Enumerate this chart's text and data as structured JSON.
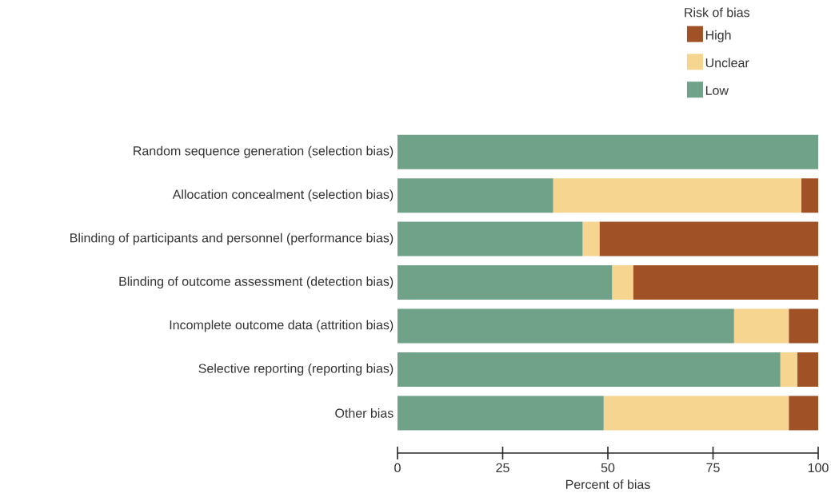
{
  "chart_data": {
    "type": "bar",
    "orientation": "horizontal",
    "stacked": true,
    "categories": [
      "Random sequence generation (selection bias)",
      "Allocation concealment (selection bias)",
      "Blinding of participants and personnel (performance bias)",
      "Blinding of outcome assessment (detection bias)",
      "Incomplete outcome data (attrition bias)",
      "Selective reporting (reporting bias)",
      "Other bias"
    ],
    "series": [
      {
        "name": "Low",
        "color": "#70a28a",
        "values": [
          100,
          37,
          44,
          51,
          80,
          91,
          49
        ]
      },
      {
        "name": "Unclear",
        "color": "#f5d58f",
        "values": [
          0,
          59,
          4,
          5,
          13,
          4,
          44
        ]
      },
      {
        "name": "High",
        "color": "#a05226",
        "values": [
          0,
          4,
          52,
          44,
          7,
          5,
          7
        ]
      }
    ],
    "xlabel": "Percent of bias",
    "legend_title": "Risk of bias",
    "legend": "top right",
    "grid": false,
    "xlim": [
      0,
      100
    ],
    "xticks": [
      0,
      25,
      50,
      75,
      100
    ]
  }
}
